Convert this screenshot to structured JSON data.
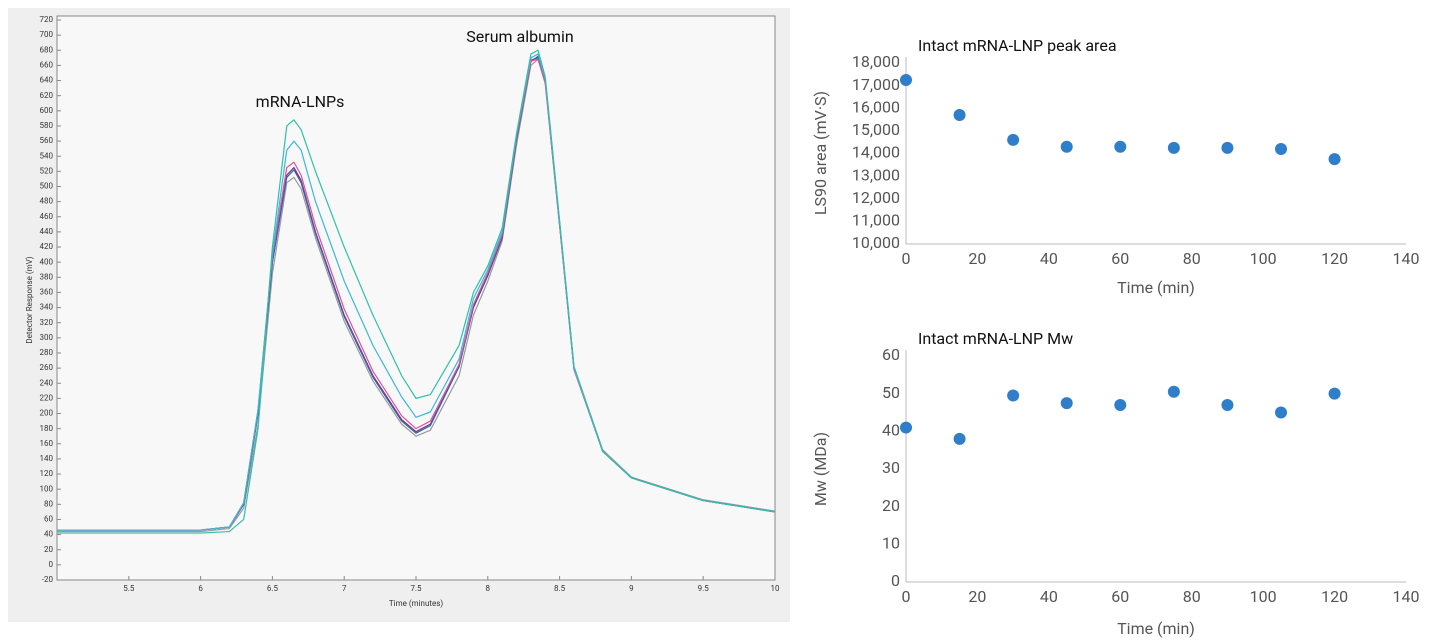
{
  "chart_data": [
    {
      "type": "line",
      "annotations": [
        "mRNA-LNPs",
        "Serum albumin"
      ],
      "x_label": "Time (minutes)",
      "y_label": "Detector Response (mV)",
      "x": [
        5.0,
        5.5,
        6.0,
        6.2,
        6.3,
        6.4,
        6.5,
        6.6,
        6.65,
        6.7,
        6.8,
        7.0,
        7.2,
        7.4,
        7.5,
        7.6,
        7.8,
        7.9,
        8.0,
        8.1,
        8.2,
        8.3,
        8.35,
        8.4,
        8.5,
        8.6,
        8.8,
        9.0,
        9.5,
        10.0
      ],
      "series": [
        {
          "color": "#999999",
          "values": [
            44,
            44,
            44,
            48,
            75,
            185,
            385,
            505,
            512,
            497,
            432,
            322,
            243,
            186,
            170,
            178,
            250,
            330,
            375,
            428,
            555,
            660,
            668,
            640,
            452,
            262,
            152,
            116,
            86,
            71
          ]
        },
        {
          "color": "#6b3a7a",
          "values": [
            46,
            46,
            46,
            50,
            80,
            200,
            400,
            515,
            525,
            508,
            440,
            330,
            250,
            192,
            176,
            186,
            262,
            340,
            382,
            432,
            562,
            665,
            672,
            640,
            450,
            260,
            150,
            115,
            85,
            70
          ]
        },
        {
          "color": "#3a5fb0",
          "values": [
            46,
            46,
            46,
            50,
            80,
            200,
            400,
            512,
            522,
            505,
            438,
            328,
            248,
            190,
            174,
            184,
            262,
            342,
            384,
            434,
            564,
            667,
            670,
            638,
            450,
            260,
            150,
            115,
            85,
            70
          ]
        },
        {
          "color": "#e0509a",
          "values": [
            46,
            46,
            46,
            50,
            82,
            205,
            408,
            525,
            532,
            515,
            448,
            338,
            256,
            197,
            180,
            190,
            265,
            344,
            386,
            436,
            566,
            666,
            668,
            636,
            448,
            258,
            150,
            115,
            85,
            70
          ]
        },
        {
          "color": "#3bb8d8",
          "values": [
            46,
            46,
            46,
            50,
            82,
            205,
            410,
            548,
            560,
            548,
            480,
            375,
            290,
            222,
            195,
            202,
            272,
            352,
            390,
            440,
            568,
            670,
            675,
            642,
            452,
            260,
            150,
            115,
            85,
            70
          ]
        },
        {
          "color": "#2fc0a8",
          "values": [
            42,
            42,
            42,
            44,
            60,
            180,
            420,
            580,
            588,
            575,
            520,
            420,
            330,
            250,
            220,
            225,
            290,
            360,
            395,
            445,
            570,
            675,
            680,
            645,
            455,
            262,
            150,
            115,
            85,
            70
          ]
        }
      ],
      "xlim": [
        5.0,
        10.0
      ],
      "xticks": [
        5.5,
        6,
        6.5,
        7,
        7.5,
        8,
        8.5,
        9,
        9.5,
        10
      ],
      "ylim": [
        -20,
        720
      ],
      "yticks": [
        -20,
        0,
        20,
        40,
        60,
        80,
        100,
        120,
        140,
        160,
        180,
        200,
        220,
        240,
        260,
        280,
        300,
        320,
        340,
        360,
        380,
        400,
        420,
        440,
        460,
        480,
        500,
        520,
        540,
        560,
        580,
        600,
        620,
        640,
        660,
        680,
        700,
        720
      ],
      "grid": false
    },
    {
      "type": "scatter",
      "title": "Intact mRNA-LNP peak area",
      "x_label": "Time (min)",
      "y_label": "LS90 area (mV·S)",
      "x": [
        0,
        15,
        30,
        45,
        60,
        75,
        90,
        105,
        120
      ],
      "series": [
        {
          "color": "#2e7ec9",
          "values": [
            17250,
            15700,
            14600,
            14300,
            14300,
            14250,
            14250,
            14200,
            13750
          ]
        }
      ],
      "xlim": [
        0,
        140
      ],
      "xticks": [
        0,
        20,
        40,
        60,
        80,
        100,
        120,
        140
      ],
      "ylim": [
        10000,
        18000
      ],
      "yticks": [
        {
          "value": 10000,
          "label": "10,000"
        },
        {
          "value": 11000,
          "label": "11,000"
        },
        {
          "value": 12000,
          "label": "12,000"
        },
        {
          "value": 13000,
          "label": "13,000"
        },
        {
          "value": 14000,
          "label": "14,000"
        },
        {
          "value": 15000,
          "label": "15,000"
        },
        {
          "value": 16000,
          "label": "16,000"
        },
        {
          "value": 17000,
          "label": "17,000"
        },
        {
          "value": 18000,
          "label": "18,000"
        }
      ],
      "grid": false
    },
    {
      "type": "scatter",
      "title": "Intact mRNA-LNP Mw",
      "x_label": "Time (min)",
      "y_label": "Mw (MDa)",
      "x": [
        0,
        15,
        30,
        45,
        60,
        75,
        90,
        105,
        120
      ],
      "series": [
        {
          "color": "#2e7ec9",
          "values": [
            41,
            38,
            49.5,
            47.5,
            47,
            50.5,
            47,
            45,
            50
          ]
        }
      ],
      "xlim": [
        0,
        140
      ],
      "xticks": [
        0,
        20,
        40,
        60,
        80,
        100,
        120,
        140
      ],
      "ylim": [
        0,
        60
      ],
      "yticks": [
        0,
        10,
        20,
        30,
        40,
        50,
        60
      ],
      "grid": false
    }
  ]
}
